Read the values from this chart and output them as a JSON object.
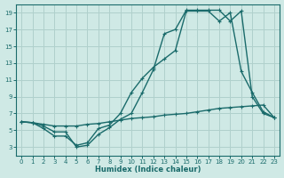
{
  "bg_color": "#cfe9e5",
  "grid_color": "#b0d0cc",
  "line_color": "#1a6b6b",
  "xlabel": "Humidex (Indice chaleur)",
  "xlim": [
    -0.5,
    23.5
  ],
  "ylim": [
    2.0,
    20.0
  ],
  "xticks": [
    0,
    1,
    2,
    3,
    4,
    5,
    6,
    7,
    8,
    9,
    10,
    11,
    12,
    13,
    14,
    15,
    16,
    17,
    18,
    19,
    20,
    21,
    22,
    23
  ],
  "yticks": [
    3,
    5,
    7,
    9,
    11,
    13,
    15,
    17,
    19
  ],
  "curve1_x": [
    0,
    1,
    2,
    3,
    4,
    5,
    6,
    7,
    8,
    9,
    10,
    11,
    12,
    13,
    14,
    15,
    16,
    17,
    18,
    19,
    20,
    21,
    22,
    23
  ],
  "curve1_y": [
    6.0,
    5.9,
    5.7,
    5.5,
    5.5,
    5.5,
    5.7,
    5.8,
    6.0,
    6.2,
    6.4,
    6.5,
    6.6,
    6.8,
    6.9,
    7.0,
    7.2,
    7.4,
    7.6,
    7.7,
    7.8,
    7.9,
    8.0,
    6.5
  ],
  "curve2_x": [
    0,
    1,
    2,
    3,
    4,
    5,
    6,
    7,
    8,
    9,
    10,
    11,
    12,
    13,
    14,
    15,
    16,
    17,
    18,
    19,
    20,
    21,
    22,
    23
  ],
  "curve2_y": [
    6.0,
    5.9,
    5.2,
    4.3,
    4.3,
    3.2,
    3.5,
    5.2,
    5.6,
    7.0,
    9.5,
    11.2,
    12.5,
    13.5,
    14.5,
    19.2,
    19.2,
    19.2,
    18.0,
    19.0,
    12.0,
    9.5,
    7.2,
    6.5
  ],
  "curve3_x": [
    0,
    1,
    2,
    3,
    4,
    5,
    6,
    7,
    8,
    9,
    10,
    11,
    12,
    13,
    14,
    15,
    16,
    17,
    18,
    19,
    20,
    21,
    22,
    23
  ],
  "curve3_y": [
    6.0,
    5.9,
    5.5,
    4.8,
    4.8,
    3.0,
    3.2,
    4.5,
    5.3,
    6.3,
    7.0,
    9.5,
    12.2,
    16.5,
    17.0,
    19.3,
    19.3,
    19.3,
    19.3,
    18.0,
    19.2,
    9.0,
    7.0,
    6.5
  ]
}
